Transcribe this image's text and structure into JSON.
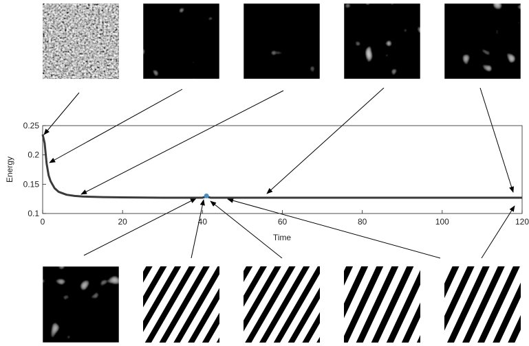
{
  "chart_data": {
    "type": "line",
    "xlabel": "Time",
    "ylabel": "Energy",
    "x": [
      0,
      0.5,
      1,
      1.5,
      2,
      3,
      4,
      6,
      8,
      10,
      15,
      20,
      30,
      40,
      41,
      42,
      50,
      60,
      80,
      100,
      120
    ],
    "values": [
      0.235,
      0.22,
      0.185,
      0.165,
      0.155,
      0.143,
      0.137,
      0.132,
      0.13,
      0.129,
      0.128,
      0.1275,
      0.127,
      0.127,
      0.129,
      0.127,
      0.127,
      0.127,
      0.127,
      0.127,
      0.127
    ],
    "color": "#3a3a3a",
    "marker": {
      "x": 41,
      "y": 0.13,
      "color": "#4a8fc4"
    },
    "xlim": [
      0,
      120
    ],
    "ylim": [
      0.1,
      0.25
    ],
    "xticks": [
      0,
      20,
      40,
      60,
      80,
      100,
      120
    ],
    "yticks": [
      0.1,
      0.15,
      0.2,
      0.25
    ]
  }
}
